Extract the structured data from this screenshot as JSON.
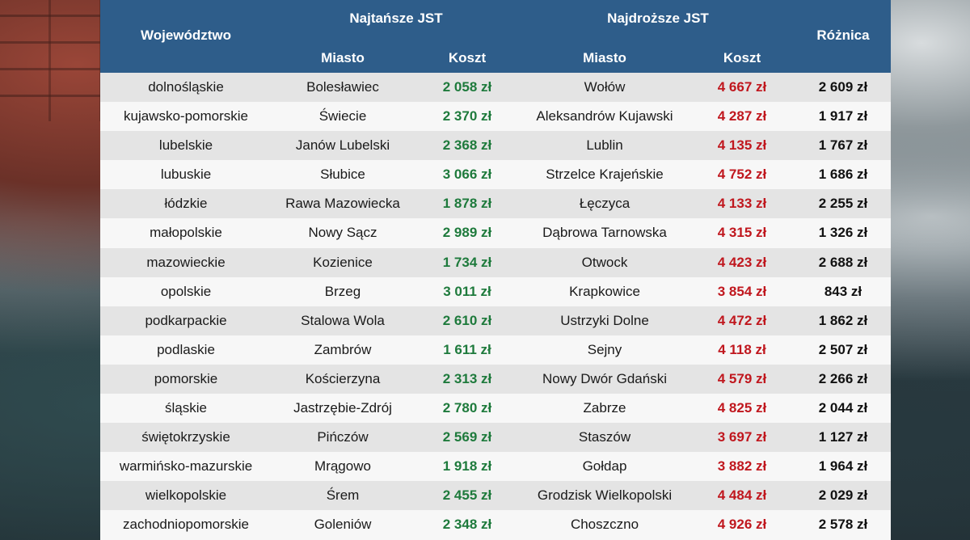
{
  "header": {
    "wojewodztwo": "Województwo",
    "najtansze": "Najtańsze JST",
    "najdrozsze": "Najdroższe JST",
    "roznica": "Różnica",
    "miasto1": "Miasto",
    "koszt1": "Koszt",
    "miasto2": "Miasto",
    "koszt2": "Koszt"
  },
  "colors": {
    "header_bg": "#2e5d8a",
    "cheap": "#1e7a3c",
    "expensive": "#c0171e"
  },
  "chart_data": {
    "type": "table",
    "columns": [
      "Województwo",
      "Najtańsze JST – Miasto",
      "Najtańsze JST – Koszt",
      "Najdroższe JST – Miasto",
      "Najdroższe JST – Koszt",
      "Różnica"
    ],
    "rows": [
      {
        "woj": "dolnośląskie",
        "m1": "Bolesławiec",
        "k1": "2 058 zł",
        "m2": "Wołów",
        "k2": "4 667 zł",
        "roz": "2 609 zł"
      },
      {
        "woj": "kujawsko-pomorskie",
        "m1": "Świecie",
        "k1": "2 370 zł",
        "m2": "Aleksandrów Kujawski",
        "k2": "4 287 zł",
        "roz": "1 917 zł"
      },
      {
        "woj": "lubelskie",
        "m1": "Janów Lubelski",
        "k1": "2 368 zł",
        "m2": "Lublin",
        "k2": "4 135 zł",
        "roz": "1 767 zł"
      },
      {
        "woj": "lubuskie",
        "m1": "Słubice",
        "k1": "3 066 zł",
        "m2": "Strzelce Krajeńskie",
        "k2": "4 752 zł",
        "roz": "1 686 zł"
      },
      {
        "woj": "łódzkie",
        "m1": "Rawa Mazowiecka",
        "k1": "1 878 zł",
        "m2": "Łęczyca",
        "k2": "4 133 zł",
        "roz": "2 255 zł"
      },
      {
        "woj": "małopolskie",
        "m1": "Nowy Sącz",
        "k1": "2 989 zł",
        "m2": "Dąbrowa Tarnowska",
        "k2": "4 315 zł",
        "roz": "1 326 zł"
      },
      {
        "woj": "mazowieckie",
        "m1": "Kozienice",
        "k1": "1 734 zł",
        "m2": "Otwock",
        "k2": "4 423 zł",
        "roz": "2 688 zł"
      },
      {
        "woj": "opolskie",
        "m1": "Brzeg",
        "k1": "3 011 zł",
        "m2": "Krapkowice",
        "k2": "3 854 zł",
        "roz": "843 zł"
      },
      {
        "woj": "podkarpackie",
        "m1": "Stalowa Wola",
        "k1": "2 610 zł",
        "m2": "Ustrzyki Dolne",
        "k2": "4 472 zł",
        "roz": "1 862 zł"
      },
      {
        "woj": "podlaskie",
        "m1": "Zambrów",
        "k1": "1 611 zł",
        "m2": "Sejny",
        "k2": "4 118 zł",
        "roz": "2 507 zł"
      },
      {
        "woj": "pomorskie",
        "m1": "Kościerzyna",
        "k1": "2 313 zł",
        "m2": "Nowy Dwór Gdański",
        "k2": "4 579 zł",
        "roz": "2 266 zł"
      },
      {
        "woj": "śląskie",
        "m1": "Jastrzębie-Zdrój",
        "k1": "2 780 zł",
        "m2": "Zabrze",
        "k2": "4 825 zł",
        "roz": "2 044 zł"
      },
      {
        "woj": "świętokrzyskie",
        "m1": "Pińczów",
        "k1": "2 569 zł",
        "m2": "Staszów",
        "k2": "3 697 zł",
        "roz": "1 127 zł"
      },
      {
        "woj": "warmińsko-mazurskie",
        "m1": "Mrągowo",
        "k1": "1 918 zł",
        "m2": "Gołdap",
        "k2": "3 882 zł",
        "roz": "1 964 zł"
      },
      {
        "woj": "wielkopolskie",
        "m1": "Śrem",
        "k1": "2 455 zł",
        "m2": "Grodzisk Wielkopolski",
        "k2": "4 484 zł",
        "roz": "2 029 zł"
      },
      {
        "woj": "zachodniopomorskie",
        "m1": "Goleniów",
        "k1": "2 348 zł",
        "m2": "Choszczno",
        "k2": "4 926 zł",
        "roz": "2 578 zł"
      }
    ]
  }
}
